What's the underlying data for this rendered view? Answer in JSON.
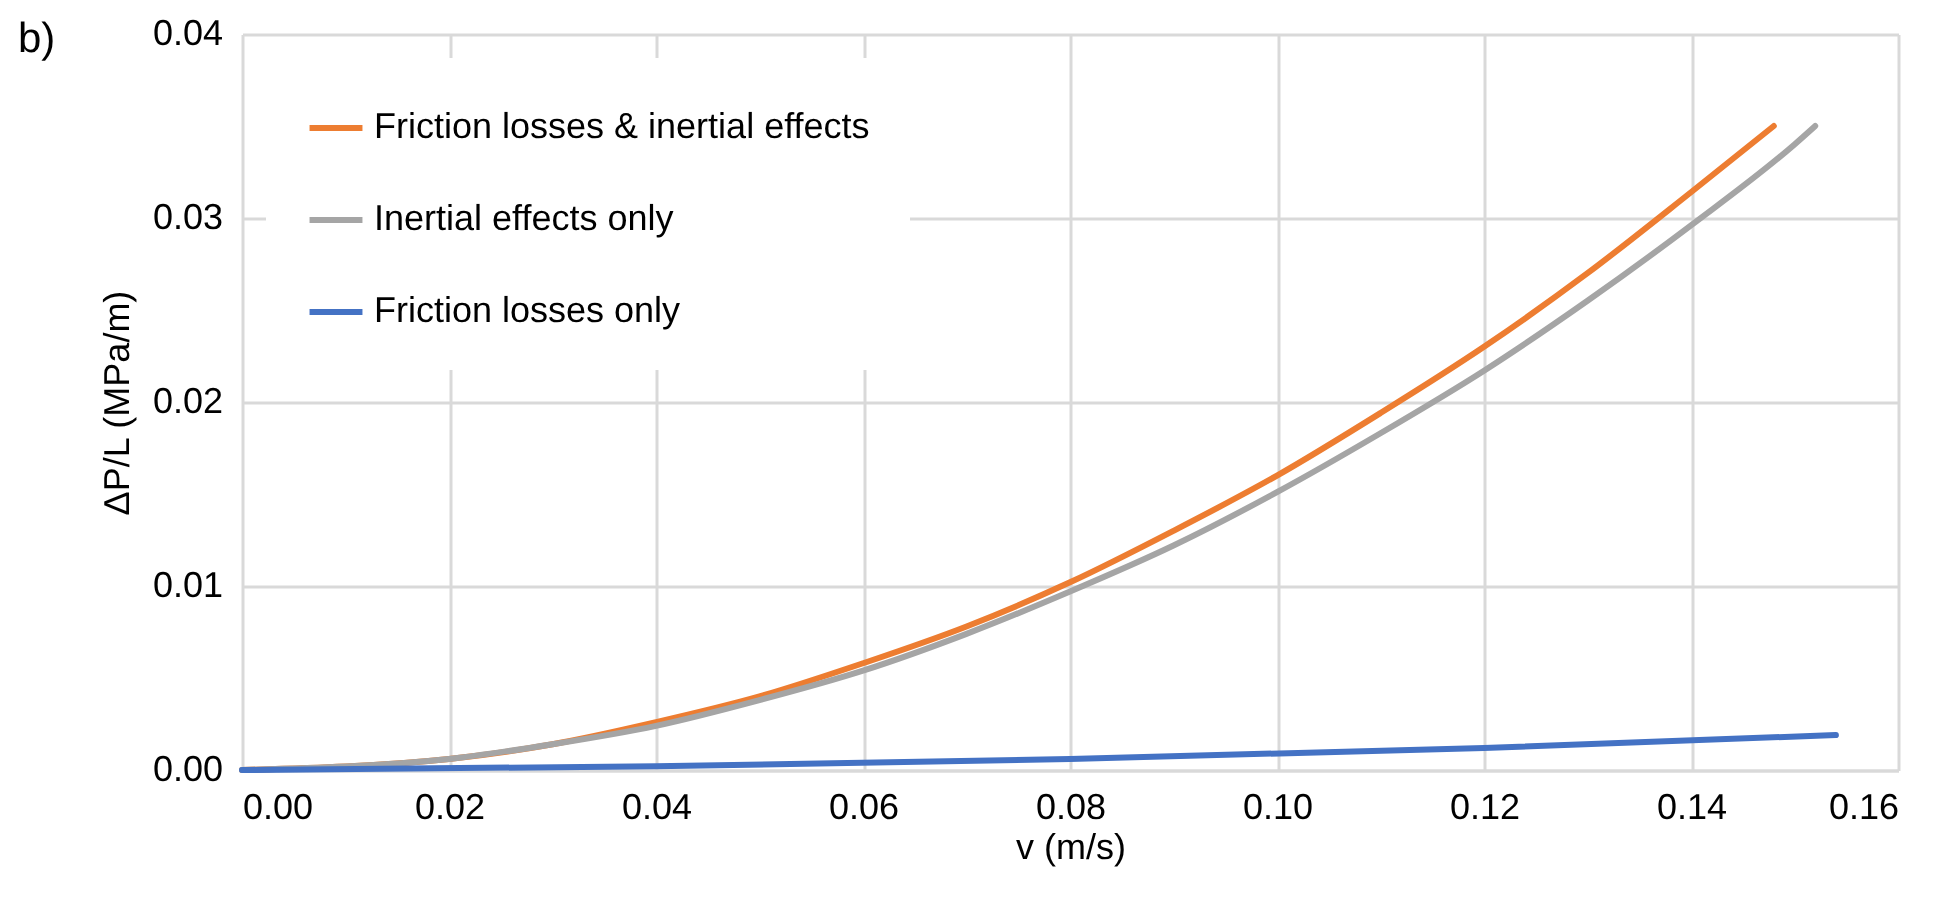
{
  "chart_data": {
    "type": "line",
    "title": "b)",
    "xlabel": "v (m/s)",
    "ylabel": "ΔP/L (MPa/m)",
    "xlim": [
      0,
      0.16
    ],
    "xticks": [
      {
        "value": 0,
        "label": "0.00"
      },
      {
        "value": 0.02,
        "label": "0.02"
      },
      {
        "value": 0.04,
        "label": "0.04"
      },
      {
        "value": 0.06,
        "label": "0.06"
      },
      {
        "value": 0.08,
        "label": "0.08"
      },
      {
        "value": 0.1,
        "label": "0.10"
      },
      {
        "value": 0.12,
        "label": "0.12"
      },
      {
        "value": 0.14,
        "label": "0.14"
      },
      {
        "value": 0.16,
        "label": "0.16"
      }
    ],
    "ylim": [
      0,
      0.04
    ],
    "yticks": [
      {
        "value": 0,
        "label": "0.00"
      },
      {
        "value": 0.01,
        "label": "0.01"
      },
      {
        "value": 0.02,
        "label": "0.02"
      },
      {
        "value": 0.03,
        "label": "0.03"
      },
      {
        "value": 0.04,
        "label": "0.04"
      }
    ],
    "grid": true,
    "legend": "top left",
    "marker": "none",
    "line_style": "solid",
    "series": [
      {
        "name": "Friction losses & inertial effects",
        "color": "#ed7d31",
        "x": [
          0,
          0.02,
          0.03,
          0.04,
          0.05,
          0.06,
          0.07,
          0.08,
          0.09,
          0.1,
          0.11,
          0.12,
          0.13,
          0.14,
          0.148
        ],
        "values": [
          0,
          0.0006,
          0.0014,
          0.0026,
          0.004,
          0.0058,
          0.0078,
          0.0102,
          0.013,
          0.016,
          0.0194,
          0.023,
          0.027,
          0.0314,
          0.035
        ]
      },
      {
        "name": "Inertial effects only",
        "color": "#a5a5a5",
        "x": [
          0,
          0.02,
          0.03,
          0.04,
          0.05,
          0.06,
          0.07,
          0.08,
          0.09,
          0.1,
          0.11,
          0.12,
          0.13,
          0.14,
          0.15,
          0.152
        ],
        "values": [
          0,
          0.0006,
          0.0014,
          0.0024,
          0.0038,
          0.0054,
          0.0074,
          0.0097,
          0.0122,
          0.0151,
          0.0183,
          0.0217,
          0.0255,
          0.0296,
          0.034,
          0.035
        ]
      },
      {
        "name": "Friction losses only",
        "color": "#4472c4",
        "x": [
          0,
          0.04,
          0.08,
          0.12,
          0.154
        ],
        "values": [
          0,
          0.0002,
          0.0006,
          0.0012,
          0.0019
        ]
      }
    ]
  }
}
